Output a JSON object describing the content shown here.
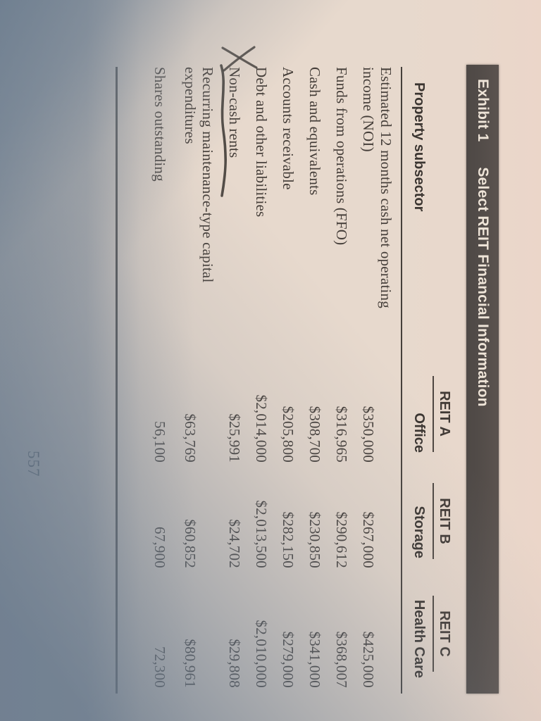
{
  "exhibit": {
    "label": "Exhibit 1",
    "title": "Select REIT Financial Information"
  },
  "table": {
    "stub_header": "Property subsector",
    "group_headers": [
      "REIT A",
      "REIT B",
      "REIT C"
    ],
    "column_headers": [
      "Office",
      "Storage",
      "Health Care"
    ],
    "rows": [
      {
        "label": "Estimated 12 months cash net operating income (NOI)",
        "values": [
          "$350,000",
          "$267,000",
          "$425,000"
        ]
      },
      {
        "label": "Funds from operations (FFO)",
        "values": [
          "$316,965",
          "$290,612",
          "$368,007"
        ]
      },
      {
        "label": "Cash and equivalents",
        "values": [
          "$308,700",
          "$230,850",
          "$341,000"
        ]
      },
      {
        "label": "Accounts receivable",
        "values": [
          "$205,800",
          "$282,150",
          "$279,000"
        ]
      },
      {
        "label": "Debt and other liabilities",
        "values": [
          "$2,014,000",
          "$2,013,500",
          "$2,010,000"
        ]
      },
      {
        "label": "Non-cash rents",
        "values": [
          "$25,991",
          "$24,702",
          "$29,808"
        ],
        "annotated": true
      },
      {
        "label": "Recurring maintenance-type capital expenditures",
        "values": [
          "$63,769",
          "$60,852",
          "$80,961"
        ]
      },
      {
        "label": "Shares outstanding",
        "values": [
          "56,100",
          "67,900",
          "72,300"
        ]
      }
    ]
  },
  "annotations": {
    "x_mark": "X",
    "underlined_label": "Non-cash rents"
  },
  "page_number": "557",
  "colors": {
    "bar_bg": "#3e3c3a",
    "bar_text": "#ede7db",
    "page": "#e7d9cd",
    "ink": "#443d38",
    "rule": "#46403b",
    "shadow": "#6c7c8d"
  }
}
